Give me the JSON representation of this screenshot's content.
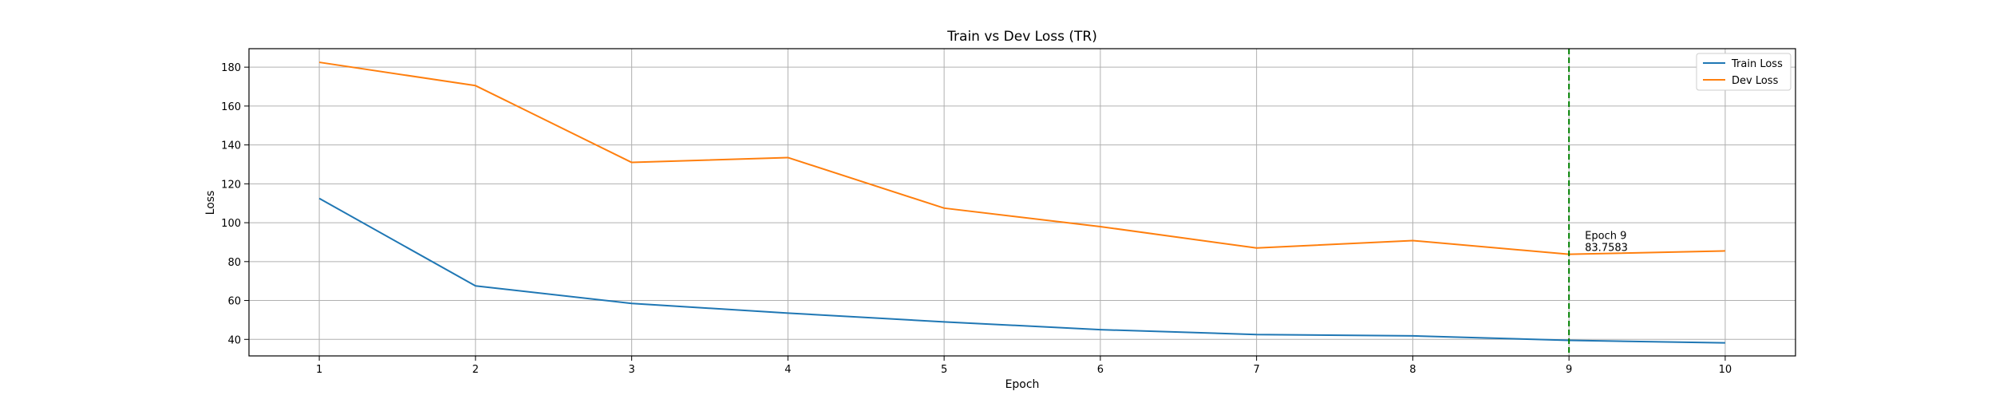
{
  "chart_data": {
    "type": "line",
    "title": "Train vs Dev Loss (TR)",
    "xlabel": "Epoch",
    "ylabel": "Loss",
    "x": [
      1,
      2,
      3,
      4,
      5,
      6,
      7,
      8,
      9,
      10
    ],
    "series": [
      {
        "name": "Train Loss",
        "color": "#1f77b4",
        "values": [
          112.5,
          67.5,
          58.5,
          53.5,
          49.0,
          45.0,
          42.5,
          41.8,
          39.5,
          38.2
        ]
      },
      {
        "name": "Dev Loss",
        "color": "#ff7f0e",
        "values": [
          182.5,
          170.5,
          131.0,
          133.5,
          107.5,
          98.0,
          87.0,
          90.8,
          83.7583,
          85.5
        ]
      }
    ],
    "xlim": [
      0.55,
      10.45
    ],
    "ylim": [
      31.5,
      189.5
    ],
    "xticks": [
      1,
      2,
      3,
      4,
      5,
      6,
      7,
      8,
      9,
      10
    ],
    "yticks": [
      40,
      60,
      80,
      100,
      120,
      140,
      160,
      180
    ],
    "grid": true,
    "legend_position": "top-right",
    "annotation": {
      "x": 9,
      "color": "#008000",
      "line1": "Epoch 9",
      "line2": "83.7583"
    }
  }
}
